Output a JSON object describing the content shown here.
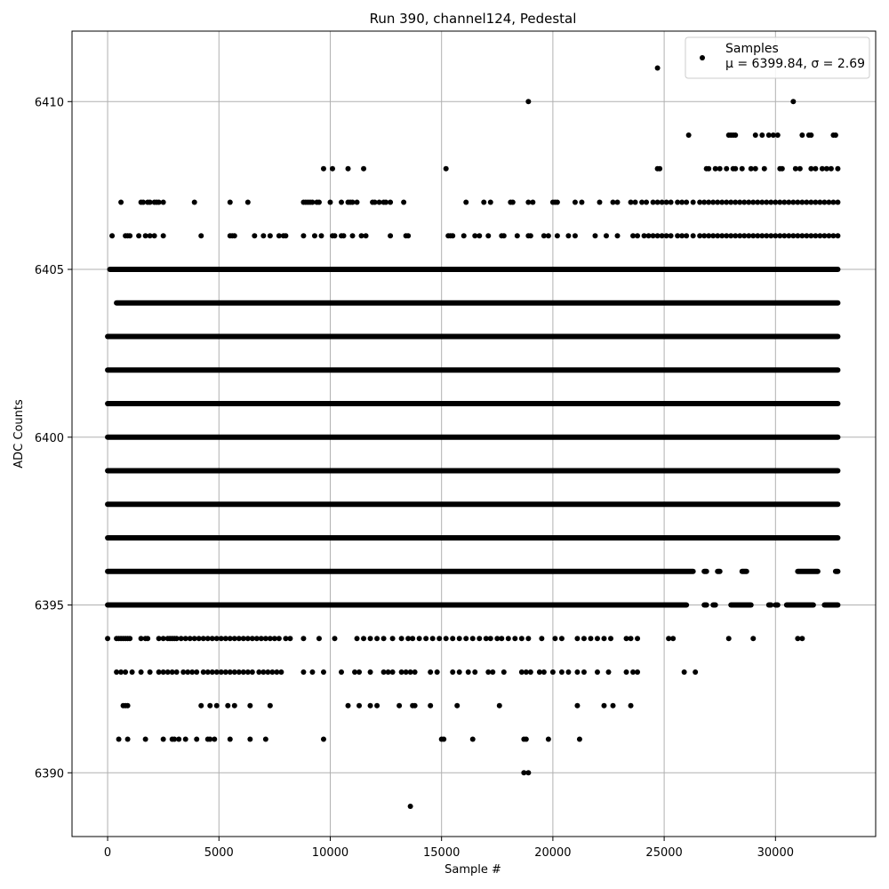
{
  "chart_data": {
    "type": "scatter",
    "title": "Run 390, channel124, Pedestal",
    "xlabel": "Sample #",
    "ylabel": "ADC Counts",
    "xlim": [
      -1600,
      34500
    ],
    "ylim": [
      6388.1,
      6412.1
    ],
    "xticks": [
      0,
      5000,
      10000,
      15000,
      20000,
      25000,
      30000
    ],
    "yticks": [
      6390,
      6395,
      6400,
      6405,
      6410
    ],
    "grid": true,
    "legend_position": "top-right",
    "marker_color": "#000000",
    "grid_color": "#b0b0b0",
    "series": [
      {
        "name": "Samples",
        "stats_label": "μ = 6399.84, σ = 2.69",
        "mu": 6399.84,
        "sigma": 2.69,
        "x_range": [
          0,
          32800
        ],
        "bands": [
          {
            "y": 6395,
            "segments": [
              [
                0,
                26000
              ],
              [
                26800,
                26900
              ],
              [
                27200,
                27300
              ],
              [
                28000,
                28900
              ],
              [
                29700,
                29800
              ],
              [
                30000,
                30100
              ],
              [
                30500,
                31700
              ],
              [
                32200,
                32800
              ]
            ]
          },
          {
            "y": 6396,
            "segments": [
              [
                0,
                26300
              ],
              [
                26800,
                26900
              ],
              [
                27400,
                27500
              ],
              [
                28500,
                28700
              ],
              [
                31000,
                31900
              ],
              [
                32700,
                32800
              ]
            ]
          },
          {
            "y": 6397,
            "segments": [
              [
                0,
                32800
              ]
            ]
          },
          {
            "y": 6398,
            "segments": [
              [
                0,
                32800
              ]
            ]
          },
          {
            "y": 6399,
            "segments": [
              [
                0,
                32800
              ]
            ]
          },
          {
            "y": 6400,
            "segments": [
              [
                0,
                32800
              ]
            ]
          },
          {
            "y": 6401,
            "segments": [
              [
                0,
                32800
              ]
            ]
          },
          {
            "y": 6402,
            "segments": [
              [
                0,
                32800
              ]
            ]
          },
          {
            "y": 6403,
            "segments": [
              [
                0,
                32800
              ]
            ]
          },
          {
            "y": 6404,
            "segments": [
              [
                400,
                32800
              ]
            ]
          },
          {
            "y": 6405,
            "segments": [
              [
                100,
                32800
              ]
            ]
          }
        ],
        "sparse_rows": [
          {
            "y": 6394,
            "x": [
              0,
              400,
              500,
              600,
              700,
              800,
              900,
              1000,
              1500,
              1700,
              1800,
              2300,
              2500,
              2700,
              2800,
              2900,
              3000,
              3100,
              3300,
              3500,
              3700,
              3900,
              4100,
              4300,
              4500,
              4700,
              4900,
              5100,
              5300,
              5500,
              5700,
              5900,
              6100,
              6300,
              6500,
              6700,
              6900,
              7100,
              7300,
              7500,
              7700,
              8000,
              8200,
              8800,
              9500,
              10200,
              11200,
              11500,
              11800,
              12100,
              12400,
              12800,
              13200,
              13500,
              13700,
              14000,
              14300,
              14600,
              14900,
              15200,
              15500,
              15800,
              16100,
              16400,
              16700,
              17000,
              17200,
              17500,
              17700,
              18000,
              18300,
              18600,
              18900,
              19500,
              20100,
              20400,
              21100,
              21400,
              21700,
              22000,
              22300,
              22600,
              23300,
              23500,
              23800,
              25200,
              25400,
              27900,
              29000,
              31000,
              31200
            ]
          },
          {
            "y": 6393,
            "x": [
              400,
              600,
              800,
              1100,
              1500,
              1900,
              2300,
              2500,
              2700,
              2900,
              3100,
              3400,
              3600,
              3800,
              4000,
              4300,
              4500,
              4700,
              4900,
              5100,
              5300,
              5500,
              5700,
              5900,
              6100,
              6300,
              6500,
              6800,
              7000,
              7200,
              7400,
              7600,
              7800,
              8800,
              9200,
              9700,
              10500,
              11100,
              11300,
              11800,
              12400,
              12600,
              12800,
              13200,
              13400,
              13600,
              13800,
              14500,
              14800,
              15500,
              15800,
              16200,
              16500,
              17100,
              17300,
              17800,
              18600,
              18800,
              19000,
              19400,
              19600,
              20000,
              20400,
              20700,
              21100,
              21400,
              22000,
              22500,
              23300,
              23600,
              23800,
              25900,
              26400
            ]
          },
          {
            "y": 6392,
            "x": [
              700,
              800,
              900,
              4200,
              4600,
              4900,
              5400,
              5700,
              6400,
              7300,
              10800,
              11300,
              11800,
              12100,
              13100,
              13700,
              13800,
              14500,
              15700,
              17600,
              21100,
              22300,
              22700,
              23500
            ]
          },
          {
            "y": 6391,
            "x": [
              500,
              900,
              1700,
              2500,
              2900,
              3000,
              3200,
              3500,
              4000,
              4500,
              4600,
              4800,
              5500,
              6400,
              7100,
              9700,
              15000,
              15100,
              16400,
              18700,
              18800,
              19800,
              21200
            ]
          },
          {
            "y": 6406,
            "x": [
              200,
              800,
              900,
              1000,
              1400,
              1700,
              1900,
              2100,
              2500,
              4200,
              5500,
              5600,
              5700,
              6600,
              7000,
              7300,
              7700,
              7900,
              8000,
              8800,
              9300,
              9600,
              10100,
              10200,
              10500,
              10600,
              11000,
              11400,
              11600,
              12700,
              13400,
              13500,
              15300,
              15400,
              15500,
              16000,
              16500,
              16700,
              17100,
              17700,
              17800,
              18400,
              18900,
              19000,
              19600,
              19800,
              20200,
              20700,
              21000,
              21900,
              22400,
              22900,
              23600,
              23800,
              24100,
              24300,
              24500,
              24700,
              24900,
              25100,
              25300,
              25600,
              25800,
              26000,
              26300,
              26600,
              26800,
              27000,
              27200,
              27400,
              27600,
              27800,
              28000,
              28200,
              28400,
              28600,
              28800,
              29000,
              29200,
              29400,
              29600,
              29800,
              30000,
              30200,
              30400,
              30600,
              30800,
              31000,
              31200,
              31400,
              31600,
              31800,
              32000,
              32200,
              32400,
              32600,
              32800
            ]
          },
          {
            "y": 6407,
            "x": [
              600,
              1500,
              1600,
              1800,
              1900,
              2100,
              2200,
              2300,
              2500,
              3900,
              5500,
              6300,
              8800,
              8900,
              9000,
              9100,
              9200,
              9400,
              9500,
              10000,
              10500,
              10800,
              10900,
              11000,
              11200,
              11900,
              12000,
              12200,
              12400,
              12500,
              12700,
              13300,
              16100,
              16900,
              17200,
              18100,
              18200,
              18900,
              19100,
              20000,
              20100,
              20200,
              21000,
              21300,
              22100,
              22700,
              22900,
              23500,
              23700,
              24000,
              24200,
              24500,
              24700,
              24900,
              25100,
              25300,
              25600,
              25800,
              26000,
              26300,
              26600,
              26800,
              27000,
              27200,
              27400,
              27600,
              27800,
              28000,
              28200,
              28400,
              28600,
              28800,
              29000,
              29200,
              29400,
              29600,
              29800,
              30000,
              30200,
              30400,
              30600,
              30800,
              31000,
              31200,
              31400,
              31600,
              31800,
              32000,
              32200,
              32400,
              32600,
              32800
            ]
          },
          {
            "y": 6408,
            "x": [
              9700,
              10100,
              10800,
              11500,
              15200,
              24700,
              24800,
              26900,
              27000,
              27300,
              27500,
              27800,
              28100,
              28200,
              28500,
              28900,
              29100,
              29500,
              30200,
              30300,
              30900,
              31100,
              31600,
              31800,
              32100,
              32300,
              32500,
              32800
            ]
          },
          {
            "y": 6409,
            "x": [
              26100,
              27900,
              28000,
              28100,
              28200,
              29100,
              29400,
              29700,
              29900,
              30100,
              31200,
              31500,
              31600,
              32600,
              32700
            ]
          },
          {
            "y": 6410,
            "x": [
              18900,
              30800
            ]
          },
          {
            "y": 6411,
            "x": [
              24700
            ]
          },
          {
            "y": 6390,
            "x": [
              18700,
              18900
            ]
          },
          {
            "y": 6389,
            "x": [
              13600
            ]
          }
        ]
      }
    ]
  }
}
